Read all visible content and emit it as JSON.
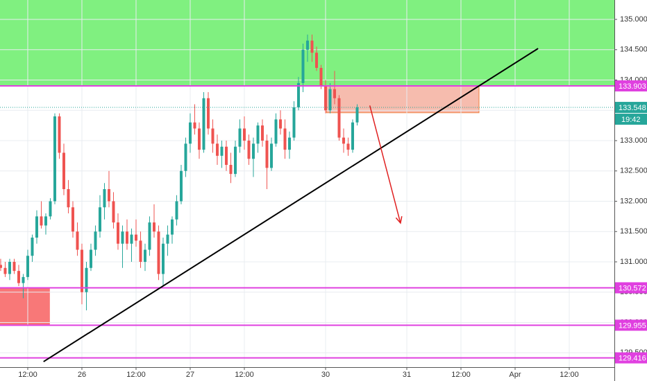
{
  "chart_data": {
    "type": "candlestick",
    "up_color": "#26a69a",
    "down_color": "#ef5350",
    "x": [
      -6,
      -5,
      -4,
      -3,
      -2,
      -1,
      0,
      1,
      2,
      3,
      4,
      5,
      6,
      7,
      8,
      9,
      10,
      11,
      12,
      13,
      14,
      15,
      16,
      17,
      18,
      19,
      20,
      21,
      22,
      23,
      24,
      25,
      26,
      27,
      28,
      29,
      30,
      31,
      32,
      33,
      34,
      35,
      36,
      37,
      38,
      39,
      40,
      41,
      42,
      43,
      44,
      45,
      46,
      47,
      48,
      49,
      50,
      51,
      52,
      53,
      54,
      55,
      56,
      57,
      58,
      59,
      60,
      61,
      62,
      63,
      64,
      65,
      66,
      67,
      68,
      69,
      70,
      71,
      72,
      73
    ],
    "ohlc": [
      [
        130.95,
        131.05,
        130.85,
        130.9
      ],
      [
        130.9,
        131.0,
        130.75,
        130.8
      ],
      [
        130.8,
        131.05,
        130.7,
        131.0
      ],
      [
        131.0,
        131.05,
        130.8,
        130.85
      ],
      [
        130.85,
        130.95,
        130.6,
        130.65
      ],
      [
        130.65,
        130.8,
        130.4,
        130.75
      ],
      [
        130.75,
        131.2,
        130.7,
        131.1
      ],
      [
        131.1,
        131.45,
        131.0,
        131.4
      ],
      [
        131.4,
        131.85,
        131.3,
        131.75
      ],
      [
        131.75,
        132.0,
        131.55,
        131.6
      ],
      [
        131.6,
        131.8,
        131.45,
        131.75
      ],
      [
        131.75,
        132.05,
        131.7,
        132.0
      ],
      [
        132.0,
        133.45,
        131.95,
        133.4
      ],
      [
        133.4,
        133.45,
        132.7,
        132.8
      ],
      [
        132.8,
        132.95,
        132.1,
        132.2
      ],
      [
        132.2,
        132.35,
        131.8,
        131.9
      ],
      [
        131.9,
        132.0,
        131.4,
        131.5
      ],
      [
        131.5,
        131.65,
        131.1,
        131.2
      ],
      [
        131.2,
        131.3,
        130.3,
        130.5
      ],
      [
        130.5,
        131.0,
        130.2,
        130.9
      ],
      [
        130.9,
        131.3,
        130.85,
        131.2
      ],
      [
        131.2,
        131.6,
        131.1,
        131.5
      ],
      [
        131.5,
        132.1,
        131.4,
        131.9
      ],
      [
        131.9,
        132.3,
        131.7,
        132.2
      ],
      [
        132.2,
        132.5,
        131.9,
        132.0
      ],
      [
        132.0,
        132.15,
        131.55,
        131.65
      ],
      [
        131.65,
        131.8,
        131.2,
        131.3
      ],
      [
        131.3,
        131.6,
        130.9,
        131.5
      ],
      [
        131.5,
        131.7,
        131.2,
        131.3
      ],
      [
        131.3,
        131.55,
        131.0,
        131.45
      ],
      [
        131.45,
        131.7,
        131.25,
        131.35
      ],
      [
        131.35,
        131.5,
        130.9,
        131.0
      ],
      [
        131.0,
        131.3,
        130.85,
        131.2
      ],
      [
        131.2,
        131.75,
        131.1,
        131.65
      ],
      [
        131.65,
        131.95,
        131.4,
        131.5
      ],
      [
        131.5,
        131.6,
        130.7,
        130.8
      ],
      [
        130.8,
        131.4,
        130.6,
        131.3
      ],
      [
        131.3,
        131.6,
        131.1,
        131.45
      ],
      [
        131.45,
        131.75,
        131.3,
        131.7
      ],
      [
        131.7,
        132.1,
        131.6,
        132.0
      ],
      [
        132.0,
        132.6,
        131.95,
        132.5
      ],
      [
        132.5,
        133.05,
        132.4,
        132.95
      ],
      [
        132.95,
        133.45,
        132.8,
        133.3
      ],
      [
        133.3,
        133.6,
        133.1,
        133.2
      ],
      [
        133.2,
        133.3,
        132.7,
        132.85
      ],
      [
        132.85,
        133.8,
        132.8,
        133.7
      ],
      [
        133.7,
        133.8,
        133.1,
        133.2
      ],
      [
        133.2,
        133.35,
        132.8,
        132.95
      ],
      [
        132.95,
        133.1,
        132.6,
        132.75
      ],
      [
        132.75,
        133.0,
        132.55,
        132.9
      ],
      [
        132.9,
        133.0,
        132.5,
        132.6
      ],
      [
        132.6,
        132.8,
        132.3,
        132.45
      ],
      [
        132.45,
        133.0,
        132.4,
        132.9
      ],
      [
        132.9,
        133.35,
        132.8,
        133.2
      ],
      [
        133.2,
        133.4,
        132.85,
        133.0
      ],
      [
        133.0,
        133.1,
        132.6,
        132.7
      ],
      [
        132.7,
        133.05,
        132.4,
        132.95
      ],
      [
        132.95,
        133.3,
        132.8,
        133.25
      ],
      [
        133.25,
        133.35,
        132.9,
        133.0
      ],
      [
        133.0,
        133.1,
        132.2,
        132.55
      ],
      [
        132.55,
        133.05,
        132.5,
        132.95
      ],
      [
        132.95,
        133.45,
        132.9,
        133.35
      ],
      [
        133.35,
        133.5,
        133.1,
        133.2
      ],
      [
        133.2,
        133.35,
        132.7,
        132.85
      ],
      [
        132.85,
        133.15,
        132.7,
        133.05
      ],
      [
        133.05,
        133.65,
        133.0,
        133.55
      ],
      [
        133.55,
        134.05,
        133.5,
        133.95
      ],
      [
        133.95,
        134.6,
        133.8,
        134.5
      ],
      [
        134.5,
        134.75,
        134.3,
        134.65
      ],
      [
        134.65,
        134.75,
        134.3,
        134.45
      ],
      [
        134.45,
        134.55,
        134.15,
        134.2
      ],
      [
        134.2,
        134.25,
        133.85,
        133.9
      ],
      [
        133.9,
        134.0,
        133.45,
        133.5
      ],
      [
        133.5,
        133.95,
        133.45,
        133.85
      ],
      [
        133.85,
        134.15,
        133.6,
        133.7
      ],
      [
        133.7,
        133.75,
        133.0,
        133.05
      ],
      [
        133.05,
        133.2,
        132.8,
        132.95
      ],
      [
        132.95,
        133.05,
        132.75,
        132.85
      ],
      [
        132.85,
        133.35,
        132.8,
        133.3
      ],
      [
        133.3,
        133.6,
        133.25,
        133.55
      ]
    ],
    "xlim": [
      -6.15,
      130
    ],
    "ylim": [
      129.263,
      135.32
    ],
    "xticks": [
      {
        "value": 0,
        "label": "12:00"
      },
      {
        "value": 12,
        "label": "26"
      },
      {
        "value": 24,
        "label": "12:00"
      },
      {
        "value": 36,
        "label": "27"
      },
      {
        "value": 48,
        "label": "12:00"
      },
      {
        "value": 66,
        "label": "30"
      },
      {
        "value": 84,
        "label": "31"
      },
      {
        "value": 96,
        "label": "12:00"
      },
      {
        "value": 108,
        "label": "Apr"
      },
      {
        "value": 120,
        "label": "12:00"
      }
    ],
    "yticks": [
      {
        "value": 129.5,
        "label": "129.500"
      },
      {
        "value": 130,
        "label": "130.000"
      },
      {
        "value": 130.5,
        "label": "130.500"
      },
      {
        "value": 131,
        "label": "131.000"
      },
      {
        "value": 131.5,
        "label": "131.500"
      },
      {
        "value": 132,
        "label": "132.000"
      },
      {
        "value": 132.5,
        "label": "132.500"
      },
      {
        "value": 133,
        "label": "133.000"
      },
      {
        "value": 133.5,
        "label": "133.500"
      },
      {
        "value": 134,
        "label": "134.000"
      },
      {
        "value": 134.5,
        "label": "134.500"
      },
      {
        "value": 135,
        "label": "135.000"
      }
    ],
    "grid": true,
    "zones": [
      {
        "x": [
          -6.15,
          130
        ],
        "y": [
          133.903,
          135.32
        ],
        "color": "#80f080"
      },
      {
        "x": [
          -6.15,
          4.9
        ],
        "y": [
          129.955,
          130.572
        ],
        "color": "#f87878"
      },
      {
        "x": [
          66.2,
          100
        ],
        "y": [
          133.46,
          133.903
        ],
        "color": "#f4b0a0"
      }
    ],
    "levels": [
      {
        "value": 133.903,
        "color": "#e040e0"
      },
      {
        "value": 130.572,
        "color": "#e040e0"
      },
      {
        "value": 129.955,
        "color": "#e040e0"
      },
      {
        "value": 129.416,
        "color": "#e040e0"
      }
    ],
    "current_price": {
      "value": 133.548,
      "color": "#26a69a",
      "timer": "19:42"
    },
    "trendline": {
      "x": [
        3.5,
        113.1
      ],
      "y": [
        129.354,
        134.52
      ],
      "color": "#000000"
    },
    "arrow": {
      "x": [
        75.8,
        82.6
      ],
      "y": [
        133.58,
        131.64
      ],
      "color": "#e02020"
    }
  }
}
